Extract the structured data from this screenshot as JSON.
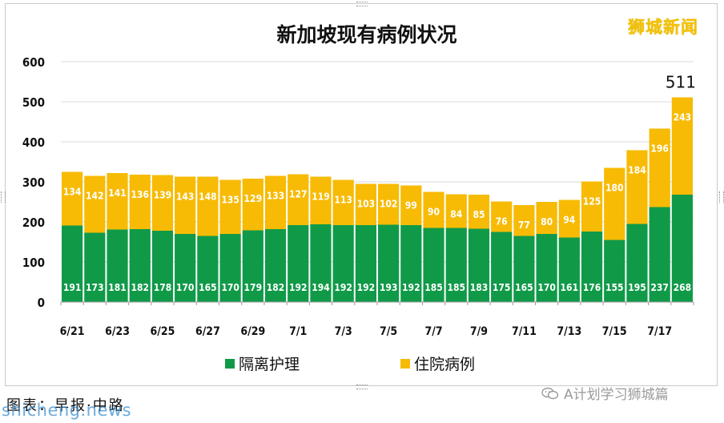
{
  "watermark": "狮城新闻",
  "footer": {
    "wechat_account": "A计划学习狮城篇",
    "caption": "图表：早报·中路",
    "site": "shicheng.news"
  },
  "colors": {
    "isolation": "#109a48",
    "hospital": "#f7bb05",
    "grid": "#d9d9d9",
    "axis_text": "#111111"
  },
  "chart_data": {
    "type": "bar",
    "stacked": true,
    "title": "新加坡现有病例状况",
    "ylim": [
      0,
      600
    ],
    "yticks": [
      0,
      100,
      200,
      300,
      400,
      500,
      600
    ],
    "grid": true,
    "legend_position": "bottom",
    "categories": [
      "6/21",
      "6/22",
      "6/23",
      "6/24",
      "6/25",
      "6/26",
      "6/27",
      "6/28",
      "6/29",
      "6/30",
      "7/1",
      "7/2",
      "7/3",
      "7/4",
      "7/5",
      "7/6",
      "7/7",
      "7/8",
      "7/9",
      "7/10",
      "7/11",
      "7/12",
      "7/13",
      "7/14",
      "7/15",
      "7/16",
      "7/17",
      "7/18"
    ],
    "xtick_labels": [
      "6/21",
      "",
      "6/23",
      "",
      "6/25",
      "",
      "6/27",
      "",
      "6/29",
      "",
      "7/1",
      "",
      "7/3",
      "",
      "7/5",
      "",
      "7/7",
      "",
      "7/9",
      "",
      "7/11",
      "",
      "7/13",
      "",
      "7/15",
      "",
      "7/17",
      ""
    ],
    "series": [
      {
        "name": "隔离护理",
        "values": [
          191,
          173,
          181,
          182,
          178,
          170,
          165,
          170,
          179,
          182,
          192,
          194,
          192,
          192,
          193,
          192,
          185,
          185,
          183,
          175,
          165,
          170,
          161,
          176,
          155,
          195,
          237,
          268
        ]
      },
      {
        "name": "住院病例",
        "values": [
          134,
          142,
          141,
          136,
          139,
          143,
          148,
          135,
          129,
          133,
          127,
          119,
          113,
          103,
          102,
          99,
          90,
          84,
          85,
          76,
          77,
          80,
          94,
          125,
          180,
          184,
          196,
          243
        ]
      }
    ],
    "annotations": [
      {
        "category": "7/18",
        "text": "511"
      }
    ]
  }
}
